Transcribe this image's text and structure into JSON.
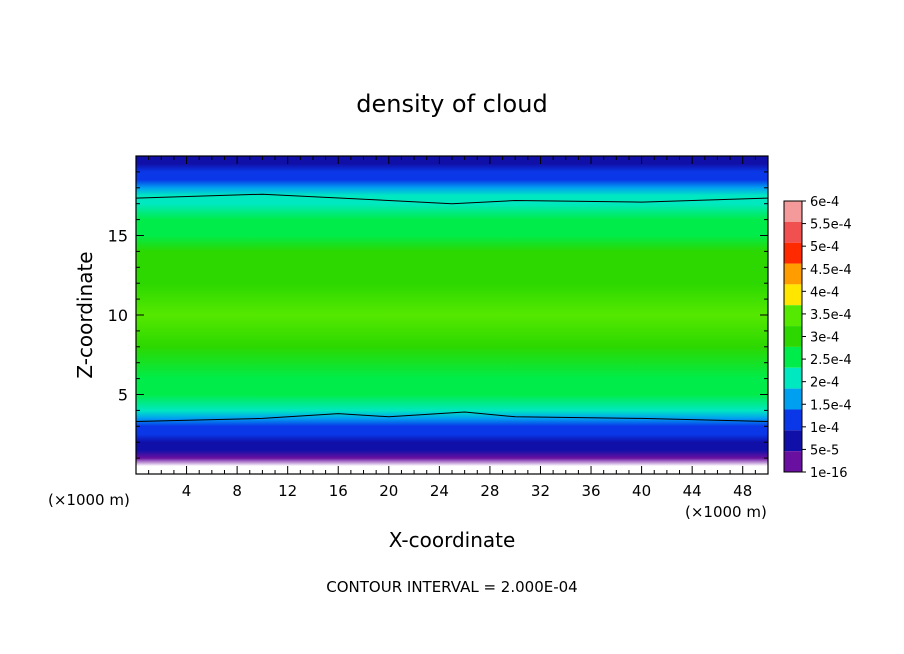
{
  "chart_data": {
    "type": "heatmap",
    "title": "density of cloud",
    "xlabel": "X-coordinate",
    "ylabel": "Z-coordinate",
    "x_unit": "(×1000 m)",
    "y_unit": "(×1000 m)",
    "xlim": [
      0,
      50
    ],
    "ylim": [
      0,
      20
    ],
    "x_ticks": [
      4,
      8,
      12,
      16,
      20,
      24,
      28,
      32,
      36,
      40,
      44,
      48
    ],
    "y_ticks": [
      5,
      10,
      15
    ],
    "footnote": "CONTOUR INTERVAL = 2.000E-04",
    "colorbar": {
      "labels": [
        "6e-4",
        "5.5e-4",
        "5e-4",
        "4.5e-4",
        "4e-4",
        "3.5e-4",
        "3e-4",
        "2.5e-4",
        "2e-4",
        "1.5e-4",
        "1e-4",
        "5e-5",
        "1e-16"
      ],
      "colors": [
        "#f49a9a",
        "#f05050",
        "#ff2a00",
        "#ff9c00",
        "#ffe600",
        "#55e800",
        "#2cd800",
        "#00ec4a",
        "#00e8c0",
        "#00a0f0",
        "#0a38e8",
        "#1010a8",
        "#6a10a0"
      ]
    },
    "profile": {
      "z": [
        0.5,
        1.0,
        1.5,
        2.0,
        2.5,
        3.0,
        3.5,
        4.0,
        5.0,
        6.0,
        8.0,
        10.0,
        12.0,
        14.0,
        15.0,
        16.0,
        17.0,
        17.5,
        18.0,
        18.5,
        19.0,
        19.5,
        19.8
      ],
      "density": [
        0,
        1e-16,
        5e-05,
        8e-05,
        0.00011,
        0.00015,
        0.00019,
        0.00023,
        0.00027,
        0.0003,
        0.00033,
        0.00035,
        0.00034,
        0.00032,
        0.0003,
        0.00027,
        0.00023,
        0.0002,
        0.00016,
        0.00013,
        0.0001,
        7e-05,
        5e-05
      ]
    },
    "contour_lines": [
      {
        "level": 0.0002,
        "z_at_x": [
          [
            0,
            17.35
          ],
          [
            10,
            17.6
          ],
          [
            20,
            17.2
          ],
          [
            25,
            17.0
          ],
          [
            30,
            17.2
          ],
          [
            40,
            17.1
          ],
          [
            50,
            17.35
          ]
        ]
      },
      {
        "level": 0.0002,
        "z_at_x": [
          [
            0,
            3.3
          ],
          [
            10,
            3.5
          ],
          [
            16,
            3.8
          ],
          [
            20,
            3.6
          ],
          [
            26,
            3.9
          ],
          [
            30,
            3.6
          ],
          [
            40,
            3.5
          ],
          [
            50,
            3.3
          ]
        ]
      }
    ]
  }
}
